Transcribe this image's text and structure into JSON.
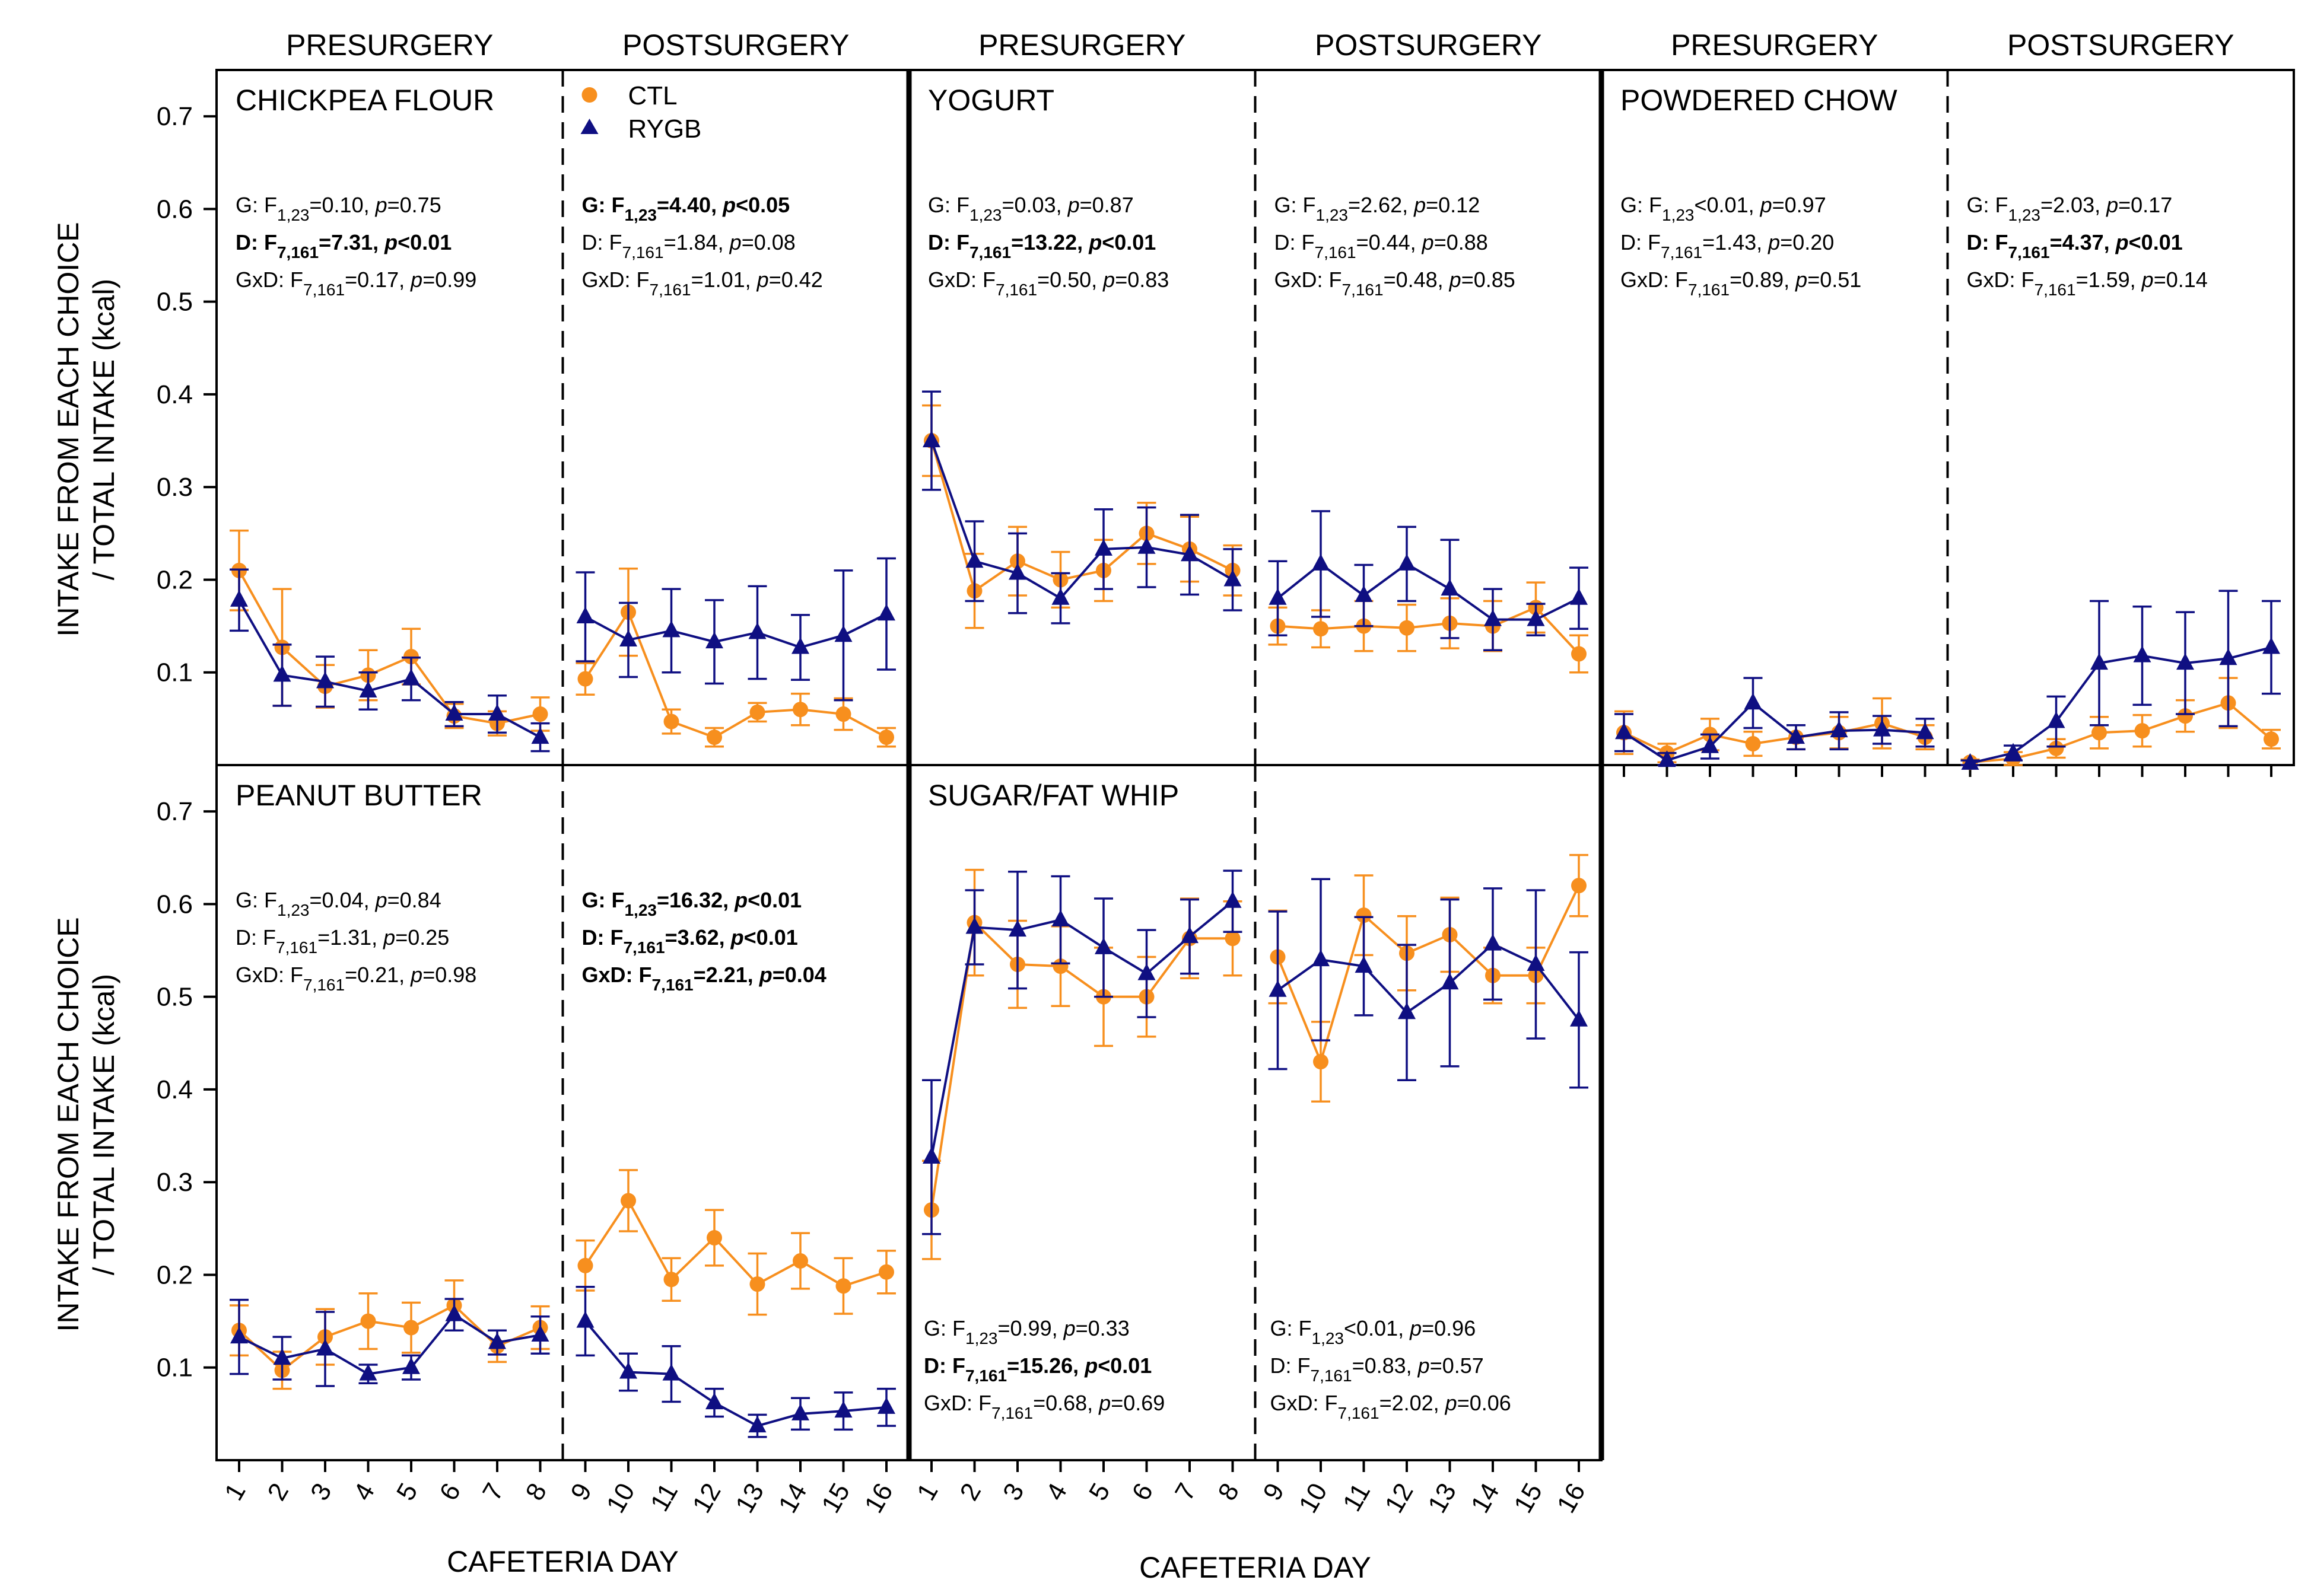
{
  "colors": {
    "ctl": "#F78F1E",
    "rygb": "#0F0F82",
    "axis": "#000000"
  },
  "labels": {
    "presurgery": "PRESURGERY",
    "postsurgery": "POSTSURGERY",
    "ylabel_line1": "INTAKE FROM EACH CHOICE",
    "ylabel_line2": "/ TOTAL INTAKE (kcal)",
    "xlabel": "CAFETERIA DAY"
  },
  "legend": {
    "ctl": "CTL",
    "rygb": "RYGB"
  },
  "chart_data": {
    "type": "line",
    "ylim": [
      0.0,
      0.75
    ],
    "yticks": [
      "0.1",
      "0.2",
      "0.3",
      "0.4",
      "0.5",
      "0.6",
      "0.7"
    ],
    "pre_days": [
      "1",
      "2",
      "3",
      "4",
      "5",
      "6",
      "7",
      "8"
    ],
    "post_days": [
      "9",
      "10",
      "11",
      "12",
      "13",
      "14",
      "15",
      "16"
    ],
    "panels": [
      {
        "title": "CHICKPEA FLOUR",
        "pre": {
          "CTL": [
            0.21,
            0.127,
            0.085,
            0.097,
            0.117,
            0.053,
            0.045,
            0.055
          ],
          "CTL_err": [
            0.043,
            0.063,
            0.023,
            0.027,
            0.03,
            0.013,
            0.013,
            0.018
          ],
          "RYGB": [
            0.178,
            0.097,
            0.09,
            0.08,
            0.093,
            0.055,
            0.055,
            0.03
          ],
          "RYGB_err": [
            0.033,
            0.033,
            0.027,
            0.02,
            0.023,
            0.013,
            0.02,
            0.015
          ],
          "stats": [
            {
              "pre": "G: F",
              "sub": "1,23",
              "eq": "=0.10, ",
              "p": "p",
              "val": "=0.75",
              "bold": false
            },
            {
              "pre": "D: F",
              "sub": "7,161",
              "eq": "=7.31, ",
              "p": "p",
              "val": "<0.01",
              "bold": true
            },
            {
              "pre": "GxD: F",
              "sub": "7,161",
              "eq": "=0.17, ",
              "p": "p",
              "val": "=0.99",
              "bold": false
            }
          ]
        },
        "post": {
          "CTL": [
            0.093,
            0.165,
            0.047,
            0.03,
            0.057,
            0.06,
            0.055,
            0.03
          ],
          "CTL_err": [
            0.017,
            0.047,
            0.013,
            0.01,
            0.01,
            0.017,
            0.017,
            0.01
          ],
          "RYGB": [
            0.16,
            0.135,
            0.145,
            0.133,
            0.143,
            0.127,
            0.14,
            0.163
          ],
          "RYGB_err": [
            0.048,
            0.04,
            0.045,
            0.045,
            0.05,
            0.035,
            0.07,
            0.06
          ],
          "stats": [
            {
              "pre": "G: F",
              "sub": "1,23",
              "eq": "=4.40, ",
              "p": "p",
              "val": "<0.05",
              "bold": true
            },
            {
              "pre": "D: F",
              "sub": "7,161",
              "eq": "=1.84, ",
              "p": "p",
              "val": "=0.08",
              "bold": false
            },
            {
              "pre": "GxD: F",
              "sub": "7,161",
              "eq": "=1.01, ",
              "p": "p",
              "val": "=0.42",
              "bold": false
            }
          ]
        }
      },
      {
        "title": "YOGURT",
        "pre": {
          "CTL": [
            0.35,
            0.188,
            0.22,
            0.2,
            0.21,
            0.25,
            0.233,
            0.21
          ],
          "CTL_err": [
            0.038,
            0.04,
            0.037,
            0.03,
            0.033,
            0.033,
            0.035,
            0.027
          ],
          "RYGB": [
            0.35,
            0.22,
            0.207,
            0.18,
            0.233,
            0.235,
            0.227,
            0.2
          ],
          "RYGB_err": [
            0.053,
            0.043,
            0.043,
            0.027,
            0.043,
            0.043,
            0.043,
            0.033
          ],
          "stats": [
            {
              "pre": "G: F",
              "sub": "1,23",
              "eq": "=0.03, ",
              "p": "p",
              "val": "=0.87",
              "bold": false
            },
            {
              "pre": "D: F",
              "sub": "7,161",
              "eq": "=13.22, ",
              "p": "p",
              "val": "<0.01",
              "bold": true
            },
            {
              "pre": "GxD: F",
              "sub": "7,161",
              "eq": "=0.50, ",
              "p": "p",
              "val": "=0.83",
              "bold": false
            }
          ]
        },
        "post": {
          "CTL": [
            0.15,
            0.147,
            0.15,
            0.148,
            0.153,
            0.15,
            0.17,
            0.12
          ],
          "CTL_err": [
            0.02,
            0.02,
            0.027,
            0.025,
            0.027,
            0.027,
            0.027,
            0.02
          ],
          "RYGB": [
            0.18,
            0.217,
            0.183,
            0.217,
            0.19,
            0.157,
            0.157,
            0.18
          ],
          "RYGB_err": [
            0.04,
            0.057,
            0.033,
            0.04,
            0.053,
            0.033,
            0.017,
            0.033
          ],
          "stats": [
            {
              "pre": "G: F",
              "sub": "1,23",
              "eq": "=2.62, ",
              "p": "p",
              "val": "=0.12",
              "bold": false
            },
            {
              "pre": "D: F",
              "sub": "7,161",
              "eq": "=0.44, ",
              "p": "p",
              "val": "=0.88",
              "bold": false
            },
            {
              "pre": "GxD: F",
              "sub": "7,161",
              "eq": "=0.48, ",
              "p": "p",
              "val": "=0.85",
              "bold": false
            }
          ]
        }
      },
      {
        "title": "POWDERED CHOW",
        "pre": {
          "CTL": [
            0.035,
            0.013,
            0.033,
            0.023,
            0.03,
            0.035,
            0.045,
            0.03
          ],
          "CTL_err": [
            0.023,
            0.01,
            0.017,
            0.013,
            0.013,
            0.017,
            0.027,
            0.013
          ],
          "RYGB": [
            0.035,
            0.005,
            0.02,
            0.067,
            0.03,
            0.037,
            0.038,
            0.035
          ],
          "RYGB_err": [
            0.02,
            0.008,
            0.013,
            0.027,
            0.013,
            0.02,
            0.015,
            0.015
          ],
          "stats": [
            {
              "pre": "G: F",
              "sub": "1,23",
              "eq": "<0.01, ",
              "p": "p",
              "val": "=0.97",
              "bold": false
            },
            {
              "pre": "D: F",
              "sub": "7,161",
              "eq": "=1.43, ",
              "p": "p",
              "val": "=0.20",
              "bold": false
            },
            {
              "pre": "GxD: F",
              "sub": "7,161",
              "eq": "=0.89, ",
              "p": "p",
              "val": "=0.51",
              "bold": false
            }
          ]
        },
        "post": {
          "CTL": [
            0.003,
            0.007,
            0.018,
            0.035,
            0.037,
            0.053,
            0.067,
            0.028
          ],
          "CTL_err": [
            0.003,
            0.007,
            0.01,
            0.017,
            0.017,
            0.017,
            0.027,
            0.01
          ],
          "RYGB": [
            0.002,
            0.013,
            0.047,
            0.11,
            0.118,
            0.11,
            0.115,
            0.127
          ],
          "RYGB_err": [
            0.003,
            0.008,
            0.027,
            0.067,
            0.053,
            0.055,
            0.073,
            0.05
          ],
          "stats": [
            {
              "pre": "G: F",
              "sub": "1,23",
              "eq": "=2.03, ",
              "p": "p",
              "val": "=0.17",
              "bold": false
            },
            {
              "pre": "D: F",
              "sub": "7,161",
              "eq": "=4.37, ",
              "p": "p",
              "val": "<0.01",
              "bold": true
            },
            {
              "pre": "GxD: F",
              "sub": "7,161",
              "eq": "=1.59, ",
              "p": "p",
              "val": "=0.14",
              "bold": false
            }
          ]
        }
      },
      {
        "title": "PEANUT BUTTER",
        "pre": {
          "CTL": [
            0.14,
            0.097,
            0.133,
            0.15,
            0.143,
            0.167,
            0.123,
            0.143
          ],
          "CTL_err": [
            0.027,
            0.02,
            0.03,
            0.03,
            0.027,
            0.027,
            0.017,
            0.023
          ],
          "RYGB": [
            0.133,
            0.11,
            0.12,
            0.093,
            0.1,
            0.157,
            0.127,
            0.135
          ],
          "RYGB_err": [
            0.04,
            0.023,
            0.04,
            0.01,
            0.013,
            0.017,
            0.013,
            0.02
          ],
          "stats": [
            {
              "pre": "G: F",
              "sub": "1,23",
              "eq": "=0.04, ",
              "p": "p",
              "val": "=0.84",
              "bold": false
            },
            {
              "pre": "D: F",
              "sub": "7,161",
              "eq": "=1.31, ",
              "p": "p",
              "val": "=0.25",
              "bold": false
            },
            {
              "pre": "GxD: F",
              "sub": "7,161",
              "eq": "=0.21, ",
              "p": "p",
              "val": "=0.98",
              "bold": false
            }
          ]
        },
        "post": {
          "CTL": [
            0.21,
            0.28,
            0.195,
            0.24,
            0.19,
            0.215,
            0.188,
            0.203
          ],
          "CTL_err": [
            0.027,
            0.033,
            0.023,
            0.03,
            0.033,
            0.03,
            0.03,
            0.023
          ],
          "RYGB": [
            0.15,
            0.095,
            0.093,
            0.062,
            0.037,
            0.05,
            0.053,
            0.057
          ],
          "RYGB_err": [
            0.037,
            0.02,
            0.03,
            0.015,
            0.012,
            0.017,
            0.02,
            0.02
          ],
          "stats": [
            {
              "pre": "G: F",
              "sub": "1,23",
              "eq": "=16.32, ",
              "p": "p",
              "val": "<0.01",
              "bold": true
            },
            {
              "pre": "D: F",
              "sub": "7,161",
              "eq": "=3.62, ",
              "p": "p",
              "val": "<0.01",
              "bold": true
            },
            {
              "pre": "GxD: F",
              "sub": "7,161",
              "eq": "=2.21, ",
              "p": "p",
              "val": "=0.04",
              "bold": true
            }
          ]
        }
      },
      {
        "title": "SUGAR/FAT WHIP",
        "pre": {
          "CTL": [
            0.27,
            0.58,
            0.535,
            0.533,
            0.5,
            0.5,
            0.563,
            0.563
          ],
          "CTL_err": [
            0.053,
            0.057,
            0.047,
            0.043,
            0.053,
            0.043,
            0.043,
            0.04
          ],
          "RYGB": [
            0.327,
            0.575,
            0.572,
            0.583,
            0.553,
            0.525,
            0.565,
            0.603
          ],
          "RYGB_err": [
            0.083,
            0.04,
            0.063,
            0.047,
            0.053,
            0.047,
            0.04,
            0.033
          ],
          "stats": [
            {
              "pre": "G: F",
              "sub": "1,23",
              "eq": "=0.99, ",
              "p": "p",
              "val": "=0.33",
              "bold": false
            },
            {
              "pre": "D: F",
              "sub": "7,161",
              "eq": "=15.26, ",
              "p": "p",
              "val": "<0.01",
              "bold": true
            },
            {
              "pre": "GxD: F",
              "sub": "7,161",
              "eq": "=0.68, ",
              "p": "p",
              "val": "=0.69",
              "bold": false
            }
          ]
        },
        "post": {
          "CTL": [
            0.543,
            0.43,
            0.588,
            0.547,
            0.567,
            0.523,
            0.523,
            0.62
          ],
          "CTL_err": [
            0.05,
            0.043,
            0.043,
            0.04,
            0.04,
            0.03,
            0.03,
            0.033
          ],
          "RYGB": [
            0.507,
            0.54,
            0.533,
            0.483,
            0.515,
            0.557,
            0.535,
            0.475
          ],
          "RYGB_err": [
            0.085,
            0.087,
            0.053,
            0.073,
            0.09,
            0.06,
            0.08,
            0.073
          ],
          "stats": [
            {
              "pre": "G: F",
              "sub": "1,23",
              "eq": "<0.01, ",
              "p": "p",
              "val": "=0.96",
              "bold": false
            },
            {
              "pre": "D: F",
              "sub": "7,161",
              "eq": "=0.83, ",
              "p": "p",
              "val": "=0.57",
              "bold": false
            },
            {
              "pre": "GxD: F",
              "sub": "7,161",
              "eq": "=2.02, ",
              "p": "p",
              "val": "=0.06",
              "bold": false
            }
          ]
        }
      }
    ]
  }
}
